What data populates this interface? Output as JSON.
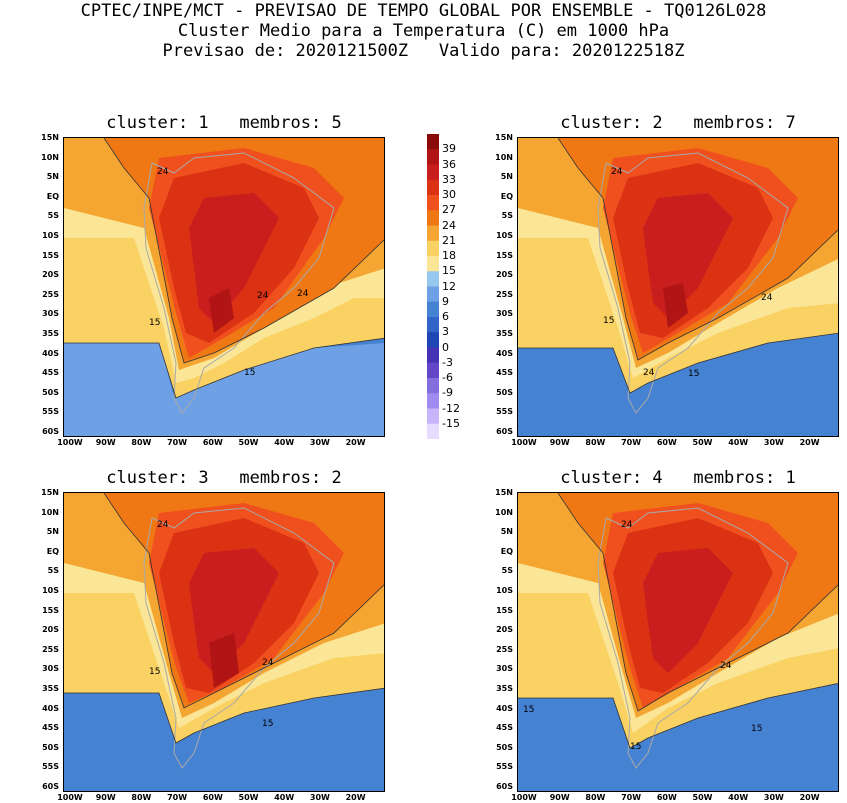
{
  "header": {
    "line1": "CPTEC/INPE/MCT - PREVISAO DE TEMPO GLOBAL POR ENSEMBLE - TQ0126L028",
    "line2": "Cluster Medio para a Temperatura (C) em 1000 hPa",
    "line3": "Previsao de: 2020121500Z   Valido para: 2020122518Z"
  },
  "axes": {
    "lat_ticks": [
      "15N",
      "10N",
      "5N",
      "EQ",
      "5S",
      "10S",
      "15S",
      "20S",
      "25S",
      "30S",
      "35S",
      "40S",
      "45S",
      "50S",
      "55S",
      "60S"
    ],
    "lon_ticks": [
      "100W",
      "90W",
      "80W",
      "70W",
      "60W",
      "50W",
      "40W",
      "30W",
      "20W"
    ]
  },
  "panels": [
    {
      "title": "cluster: 1   membros: 5",
      "labels": [
        "24",
        "24",
        "24",
        "15",
        "15"
      ]
    },
    {
      "title": "cluster: 2   membros: 7",
      "labels": [
        "24",
        "24",
        "15",
        "24",
        "15"
      ]
    },
    {
      "title": "cluster: 3   membros: 2",
      "labels": [
        "24",
        "24",
        "15",
        "15"
      ]
    },
    {
      "title": "cluster: 4   membros: 1",
      "labels": [
        "24",
        "24",
        "15",
        "15",
        "15"
      ]
    }
  ],
  "colorbar": {
    "labels": [
      "39",
      "36",
      "33",
      "30",
      "27",
      "24",
      "21",
      "18",
      "15",
      "12",
      "9",
      "6",
      "3",
      "0",
      "-3",
      "-6",
      "-9",
      "-12",
      "-15"
    ],
    "colors": [
      "#8b0a0a",
      "#b01414",
      "#c81e1e",
      "#dc3214",
      "#f0501e",
      "#f07814",
      "#f5a532",
      "#fad264",
      "#fae696",
      "#96c8f0",
      "#6ea0e6",
      "#4682d2",
      "#3264c8",
      "#1e46b4",
      "#4632b4",
      "#6446c8",
      "#826edc",
      "#a08cf0",
      "#c8b4fa",
      "#e6dcff"
    ]
  }
}
